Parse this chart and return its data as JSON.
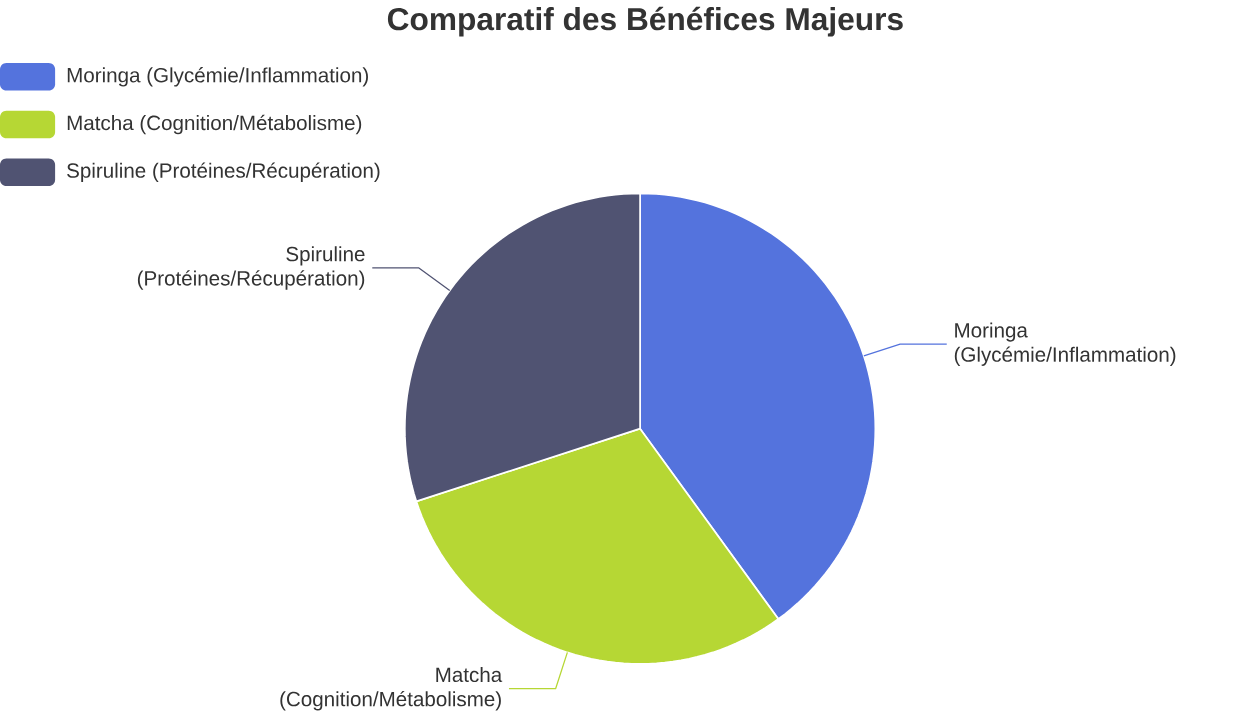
{
  "chart_data": {
    "type": "pie",
    "title": "Comparatif des Bénéfices Majeurs",
    "categories": [
      "Moringa (Glycémie/Inflammation)",
      "Matcha (Cognition/Métabolisme)",
      "Spiruline (Protéines/Récupération)"
    ],
    "values": [
      40,
      30,
      30
    ],
    "colors": [
      "#5473dd",
      "#b6d734",
      "#505372"
    ],
    "legend": "top left"
  }
}
